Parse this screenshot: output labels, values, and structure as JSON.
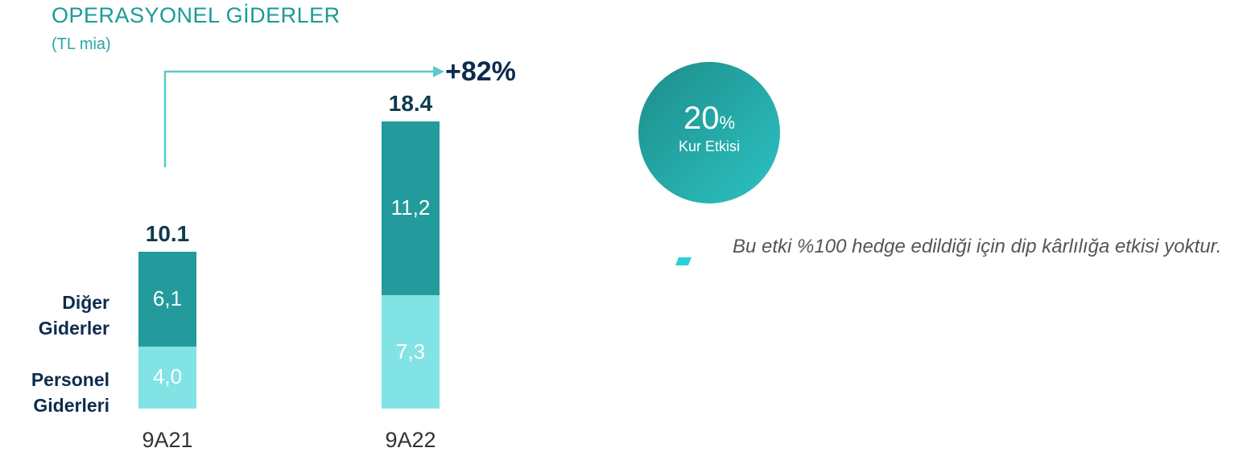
{
  "chart_data": {
    "type": "bar",
    "stacked": true,
    "title": "OPERASYONEL GİDERLER",
    "subtitle": "(TL mia)",
    "categories": [
      "9A21",
      "9A22"
    ],
    "series": [
      {
        "name": "Personel Giderleri",
        "color": "#82e3e5",
        "values": [
          4.0,
          7.3
        ],
        "value_labels": [
          "4,0",
          "7,3"
        ]
      },
      {
        "name": "Diğer Giderler",
        "color": "#239b9c",
        "values": [
          6.1,
          11.2
        ],
        "value_labels": [
          "6,1",
          "11,2"
        ]
      }
    ],
    "totals": [
      10.1,
      18.4
    ],
    "annotation": "+82%"
  },
  "highlight": {
    "value": 20,
    "unit": "%",
    "label": "Kur Etkisi"
  },
  "note": "Bu etki %100 hedge edildiği için dip kârlılığa etkisi yoktur."
}
